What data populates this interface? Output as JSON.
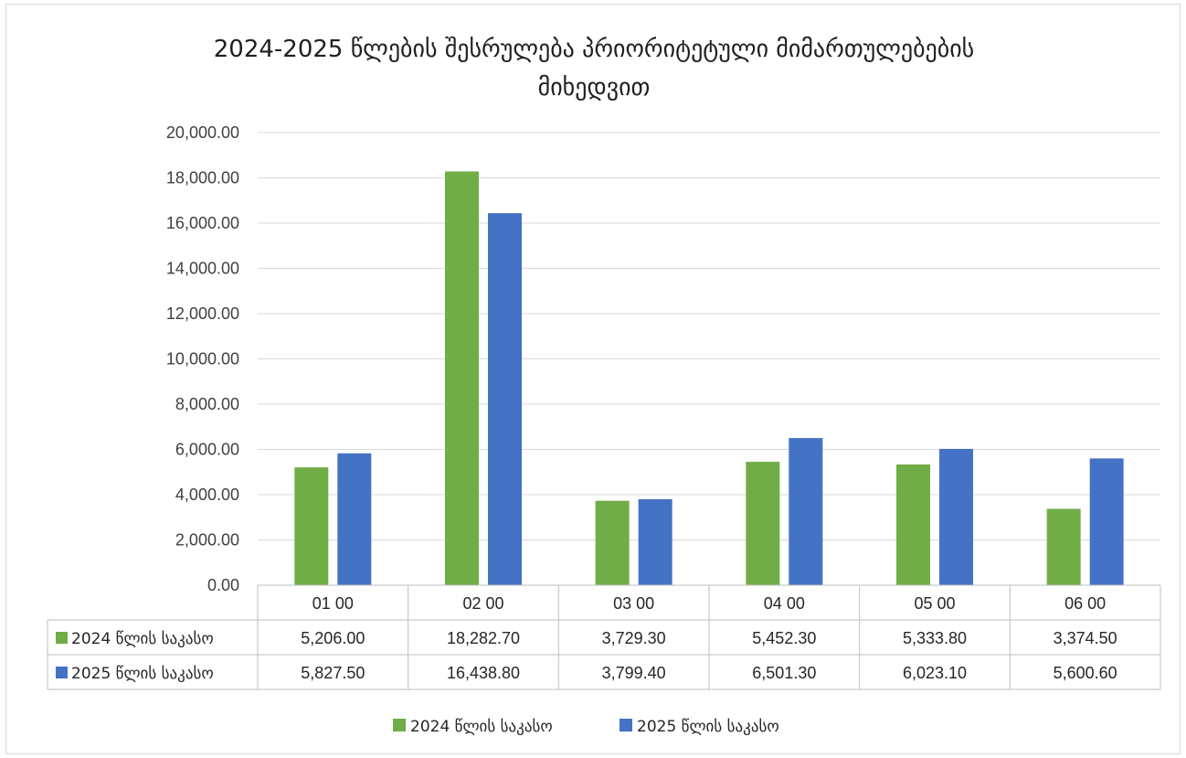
{
  "chart_data": {
    "type": "bar",
    "title_line1": "2024-2025   წლების შესრულება პრიორიტეტული მიმართულებების",
    "title_line2": "მიხედვით",
    "categories": [
      "01 00",
      "02 00",
      "03 00",
      "04 00",
      "05 00",
      "06 00"
    ],
    "series": [
      {
        "name": "2024 წლის საკასო",
        "color": "#70ad47",
        "values": [
          5206.0,
          18282.7,
          3729.3,
          5452.3,
          5333.8,
          3374.5
        ],
        "labels": [
          "5,206.00",
          "18,282.70",
          "3,729.30",
          "5,452.30",
          "5,333.80",
          "3,374.50"
        ]
      },
      {
        "name": "2025 წლის საკასო",
        "color": "#4472c4",
        "values": [
          5827.5,
          16438.8,
          3799.4,
          6501.3,
          6023.1,
          5600.6
        ],
        "labels": [
          "5,827.50",
          "16,438.80",
          "3,799.40",
          "6,501.30",
          "6,023.10",
          "5,600.60"
        ]
      }
    ],
    "ylim": [
      0,
      20000
    ],
    "yticks": [
      "0.00",
      "2,000.00",
      "4,000.00",
      "6,000.00",
      "8,000.00",
      "10,000.00",
      "12,000.00",
      "14,000.00",
      "16,000.00",
      "18,000.00",
      "20,000.00"
    ],
    "grid": true,
    "data_table": true,
    "legend_position": "bottom"
  }
}
